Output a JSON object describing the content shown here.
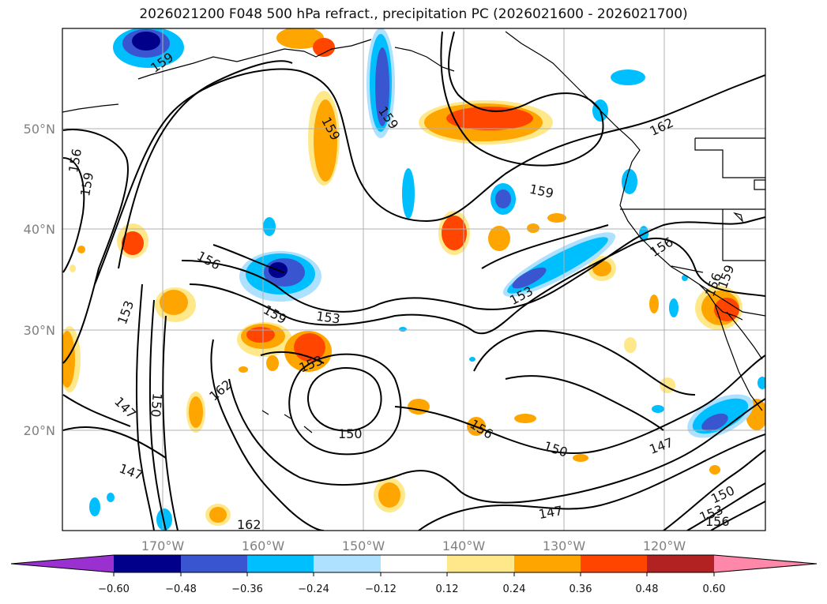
{
  "title": "2026021200 F048 500 hPa refract., precipitation PC (2026021600 - 2026021700)",
  "lat_labels": [
    "50°N",
    "40°N",
    "30°N",
    "20°N"
  ],
  "lon_labels": [
    "170°W",
    "160°W",
    "150°W",
    "140°W",
    "130°W",
    "120°W"
  ],
  "contour_labels": [
    "159",
    "159",
    "159",
    "162",
    "159",
    "156",
    "159",
    "156",
    "153",
    "156",
    "153",
    "159",
    "153",
    "162",
    "147",
    "150",
    "150",
    "147",
    "153",
    "156",
    "150",
    "147",
    "156",
    "159",
    "147",
    "150",
    "153",
    "156",
    "162"
  ],
  "colorbar": {
    "ticks": [
      "−0.60",
      "−0.48",
      "−0.36",
      "−0.24",
      "−0.12",
      "0.12",
      "0.24",
      "0.36",
      "0.48",
      "0.60"
    ],
    "colors": [
      "#9b30d0",
      "#00008b",
      "#3a55d0",
      "#00bfff",
      "#aee0ff",
      "#ffffff",
      "#ffe88a",
      "#ffa500",
      "#ff4500",
      "#b22222",
      "#ff88aa"
    ]
  }
}
